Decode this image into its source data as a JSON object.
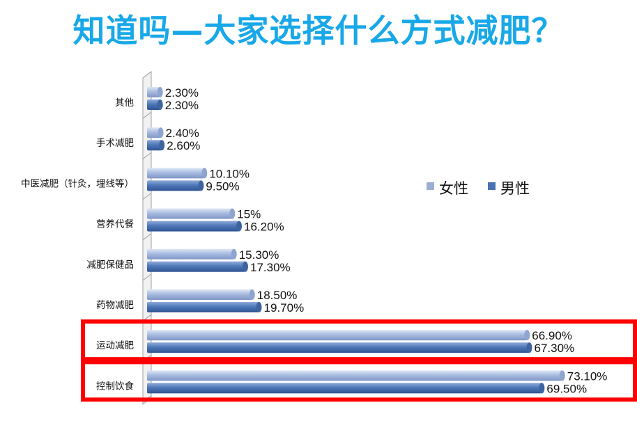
{
  "title": "知道吗—大家选择什么方式减肥？",
  "chart_data": {
    "type": "bar",
    "orientation": "horizontal",
    "title": "知道吗—大家选择什么方式减肥？",
    "categories": [
      "其他",
      "手术减肥",
      "中医减肥（针灸，埋线等）",
      "营养代餐",
      "减肥保健品",
      "药物减肥",
      "运动减肥",
      "控制饮食"
    ],
    "series": [
      {
        "name": "女性",
        "values": [
          2.3,
          2.4,
          10.1,
          15,
          15.3,
          18.5,
          66.9,
          73.1
        ],
        "labels": [
          "2.30%",
          "2.40%",
          "10.10%",
          "15%",
          "15.30%",
          "18.50%",
          "66.90%",
          "73.10%"
        ],
        "color": "#9aaed6"
      },
      {
        "name": "男性",
        "values": [
          2.3,
          2.6,
          9.5,
          16.2,
          17.3,
          19.7,
          67.3,
          69.5
        ],
        "labels": [
          "2.30%",
          "2.60%",
          "9.50%",
          "16.20%",
          "17.30%",
          "19.70%",
          "67.30%",
          "69.50%"
        ],
        "color": "#4a72b0"
      }
    ],
    "xlim": [
      0,
      80
    ],
    "legend_position": "right",
    "highlighted_categories": [
      "运动减肥",
      "控制饮食"
    ],
    "highlight_color": "#ff0000"
  }
}
